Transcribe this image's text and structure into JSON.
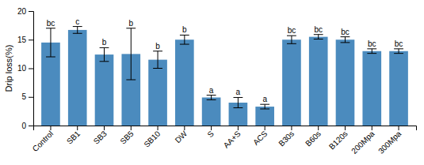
{
  "chart_data": {
    "type": "bar",
    "categories": [
      "Control",
      "SB1",
      "SB3",
      "SB5",
      "SB10",
      "DW",
      "S",
      "AA+S",
      "ACS",
      "B30s",
      "B60s",
      "B120s",
      "200Mpa",
      "300Mpa"
    ],
    "values": [
      14.5,
      16.7,
      12.4,
      12.5,
      11.5,
      15.0,
      4.9,
      4.0,
      3.3,
      15.0,
      15.5,
      15.0,
      13.0,
      13.0
    ],
    "errors": [
      2.5,
      0.6,
      1.2,
      4.5,
      1.5,
      0.8,
      0.4,
      0.9,
      0.4,
      0.7,
      0.4,
      0.5,
      0.4,
      0.4
    ],
    "annotations": [
      "bc",
      "c",
      "b",
      "b",
      "b",
      "b",
      "a",
      "a",
      "a",
      "bc",
      "bc",
      "bc",
      "bc",
      "bc"
    ],
    "color": "#4B8BBE",
    "ylabel": "Drip loss(%)",
    "ylim": [
      0,
      20
    ],
    "yticks": [
      0,
      5,
      10,
      15,
      20
    ],
    "grid": false
  }
}
